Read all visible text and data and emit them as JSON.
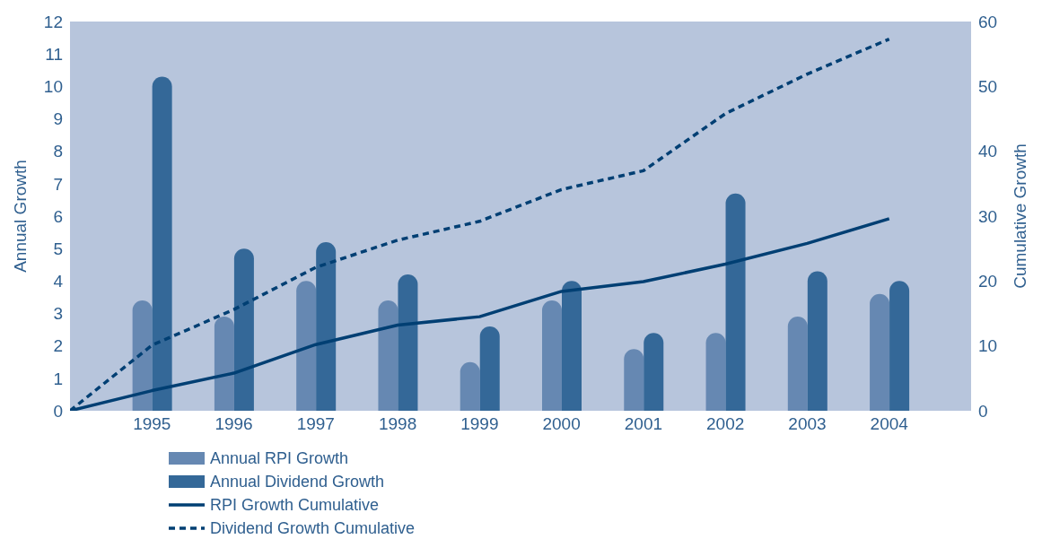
{
  "chart_data": {
    "type": "bar",
    "ylabel": "Annual Growth",
    "y2label": "Cumulative Growth",
    "categories": [
      null,
      "1995",
      "1996",
      "1997",
      "1998",
      "1999",
      "2000",
      "2001",
      "2002",
      "2003",
      "2004",
      null
    ],
    "series": [
      {
        "name": "Annual RPI Growth",
        "color": "#6688b2",
        "values": [
          null,
          3.4,
          2.9,
          4.0,
          3.4,
          1.5,
          3.4,
          1.9,
          2.4,
          2.9,
          3.6,
          null
        ]
      },
      {
        "name": "Annual Dividend Growth",
        "color": "#346898",
        "values": [
          null,
          10.3,
          5.0,
          5.2,
          4.2,
          2.6,
          4.0,
          2.4,
          6.7,
          4.3,
          4.0,
          null
        ]
      },
      {
        "name": "RPI Growth Cumulative",
        "type": "line",
        "axis": "y2",
        "line_style": "solid",
        "color": "#003f73",
        "values": [
          0,
          3.1,
          5.8,
          10.2,
          13.2,
          14.5,
          18.4,
          19.9,
          22.6,
          25.8,
          29.6,
          null
        ]
      },
      {
        "name": "Dividend Growth Cumulative",
        "type": "line",
        "axis": "y2",
        "line_style": "dashed",
        "color": "#003f73",
        "values": [
          0,
          10.1,
          15.6,
          22.1,
          26.3,
          29.2,
          34.1,
          37.0,
          45.8,
          51.9,
          57.3,
          null
        ]
      }
    ],
    "ylim": [
      0,
      12
    ],
    "yticks": [
      0,
      1,
      2,
      3,
      4,
      5,
      6,
      7,
      8,
      9,
      10,
      11,
      12
    ],
    "y2lim": [
      0,
      60
    ],
    "y2ticks": [
      0,
      10,
      20,
      30,
      40,
      50,
      60
    ],
    "legend": "bottom",
    "marker": "none"
  }
}
